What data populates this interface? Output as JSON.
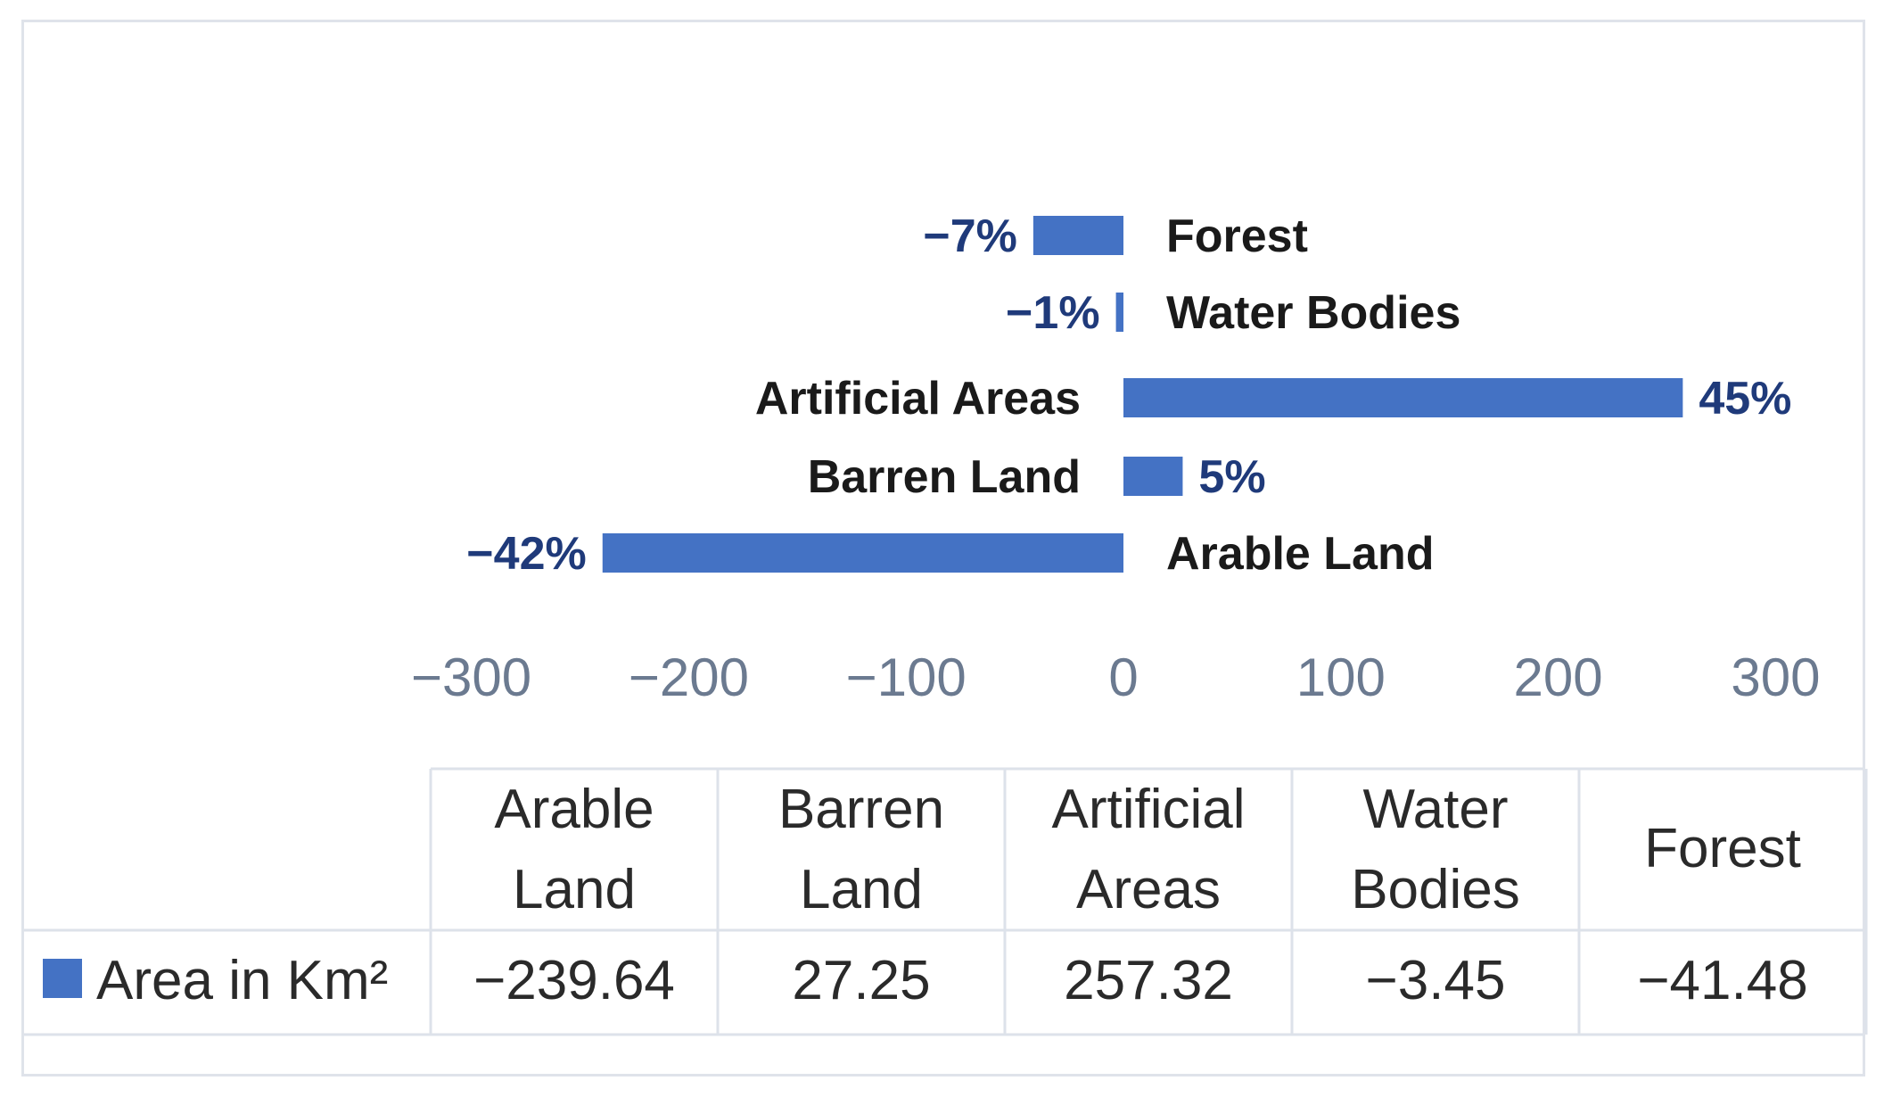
{
  "chart_data": {
    "type": "bar",
    "orientation": "horizontal",
    "categories": [
      "Arable Land",
      "Barren Land",
      "Artificial Areas",
      "Water Bodies",
      "Forest"
    ],
    "series": [
      {
        "name": "Area in Km²",
        "values": [
          -239.64,
          27.25,
          257.32,
          -3.45,
          -41.48
        ]
      }
    ],
    "data_labels": [
      "−42%",
      "5%",
      "45%",
      "−1%",
      "−7%"
    ],
    "xlim": [
      -300,
      300
    ],
    "xticks": [
      -300,
      -200,
      -100,
      0,
      100,
      200,
      300
    ],
    "xtick_labels": [
      "−300",
      "−200",
      "−100",
      "0",
      "100",
      "200",
      "300"
    ],
    "grid": false,
    "legend_placement": "data-table",
    "color": "#4472c4",
    "table": {
      "header": [
        "Arable Land",
        "Barren Land",
        "Artificial Areas",
        "Water Bodies",
        "Forest"
      ],
      "header_lines": [
        [
          "Arable",
          "Land"
        ],
        [
          "Barren",
          "Land"
        ],
        [
          "Artificial",
          "Areas"
        ],
        [
          "Water",
          "Bodies"
        ],
        [
          "Forest"
        ]
      ],
      "row_label": "Area in Km²",
      "row_values": [
        "−239.64",
        "27.25",
        "257.32",
        "−3.45",
        "−41.48"
      ]
    }
  }
}
